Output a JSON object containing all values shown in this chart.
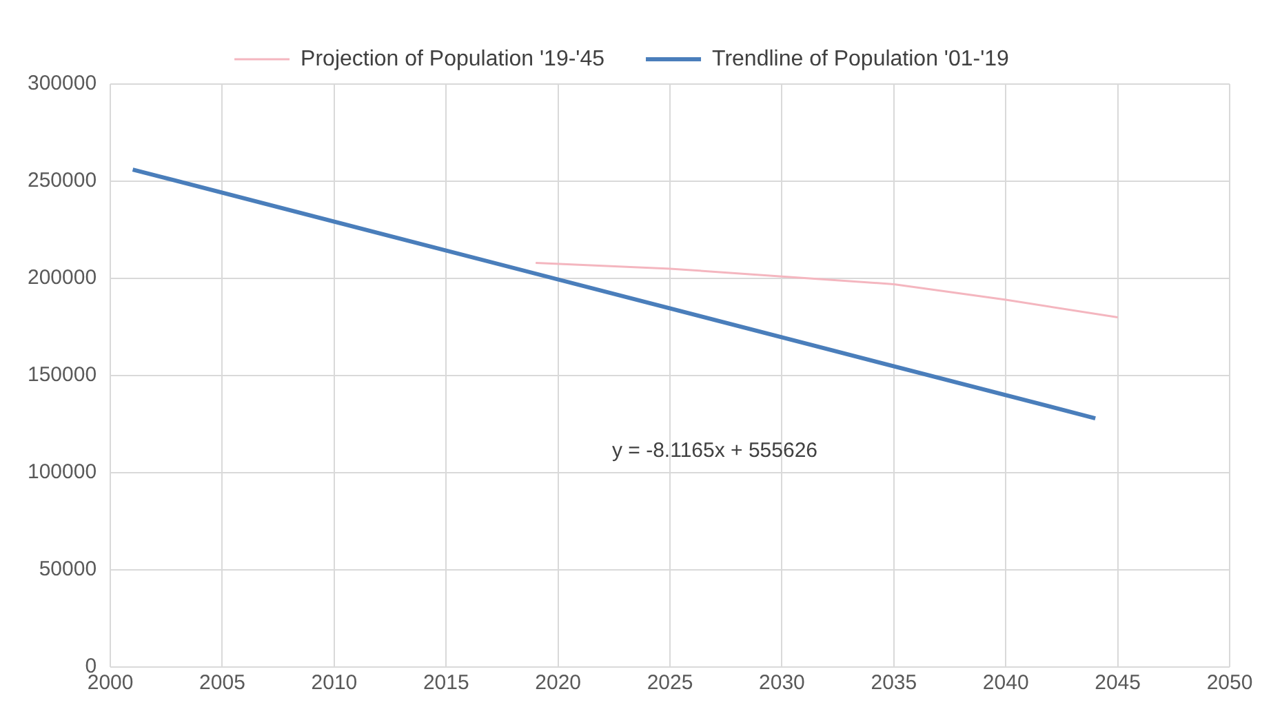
{
  "chart_data": {
    "type": "line",
    "xlim": [
      2000,
      2050
    ],
    "xticks": [
      2000,
      2005,
      2010,
      2015,
      2020,
      2025,
      2030,
      2035,
      2040,
      2045,
      2050
    ],
    "ylim": [
      0,
      300000
    ],
    "yticks": [
      0,
      50000,
      100000,
      150000,
      200000,
      250000,
      300000
    ],
    "grid": true,
    "legend": "top",
    "marker": "none",
    "series": [
      {
        "name": "Projection of Population '19-'45",
        "color": "#f4b6bf",
        "x": [
          2019,
          2025,
          2030,
          2035,
          2040,
          2045
        ],
        "values": [
          208000,
          205000,
          201000,
          197000,
          189000,
          180000
        ]
      },
      {
        "name": "Trendline of Population '01-'19",
        "color": "#4a7ebb",
        "x": [
          2001,
          2044
        ],
        "values": [
          256000,
          128000
        ]
      }
    ],
    "annotations": [
      "y = -8.1165x + 555626"
    ]
  }
}
